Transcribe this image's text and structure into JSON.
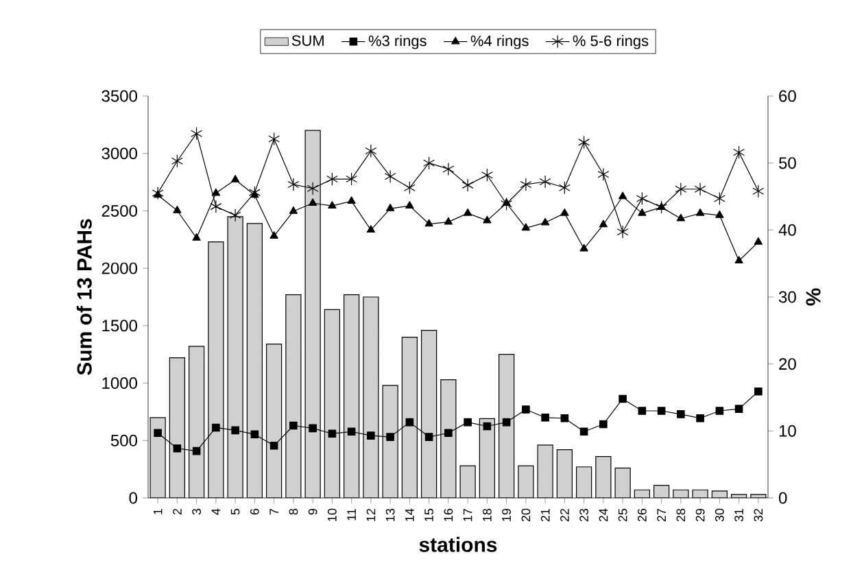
{
  "chart_data": {
    "type": "bar",
    "xlabel": "stations",
    "ylabel": "Sum of 13 PAHs",
    "y2label": "%",
    "categories": [
      "1",
      "2",
      "3",
      "4",
      "5",
      "6",
      "7",
      "8",
      "9",
      "10",
      "11",
      "12",
      "13",
      "14",
      "15",
      "16",
      "17",
      "18",
      "19",
      "20",
      "21",
      "22",
      "23",
      "24",
      "25",
      "26",
      "27",
      "28",
      "29",
      "30",
      "31",
      "32"
    ],
    "series": [
      {
        "name": "SUM",
        "color": "#d0d0d0",
        "values": [
          700,
          1220,
          1320,
          2230,
          2450,
          2390,
          1340,
          1770,
          3200,
          1640,
          1770,
          1750,
          980,
          1400,
          1460,
          1030,
          280,
          690,
          1250,
          280,
          460,
          420,
          270,
          360,
          260,
          70,
          110,
          70,
          70,
          60,
          30,
          30
        ]
      },
      {
        "name": "%3 rings",
        "type": "line",
        "axis": "y2",
        "marker": "square",
        "color": "#000000",
        "values": [
          9.7,
          7.4,
          7.0,
          10.5,
          10.1,
          9.5,
          7.8,
          10.8,
          10.4,
          9.6,
          9.9,
          9.3,
          9.1,
          11.3,
          9.1,
          9.7,
          11.3,
          10.7,
          11.3,
          13.2,
          12.0,
          11.9,
          9.9,
          11.0,
          14.8,
          13.0,
          13.0,
          12.5,
          11.9,
          13.0,
          13.3,
          15.9
        ]
      },
      {
        "name": "%4 rings",
        "type": "line",
        "axis": "y2",
        "marker": "triangle",
        "color": "#000000",
        "values": [
          45.2,
          42.9,
          38.8,
          45.5,
          47.5,
          45.2,
          39.1,
          42.8,
          44.0,
          43.6,
          44.3,
          40.0,
          43.2,
          43.6,
          40.9,
          41.2,
          42.5,
          41.4,
          44.0,
          40.3,
          41.1,
          42.5,
          37.2,
          40.8,
          45.0,
          42.5,
          43.4,
          41.7,
          42.5,
          42.2,
          35.4,
          38.2
        ]
      },
      {
        "name": "% 5-6 rings",
        "type": "line",
        "axis": "y2",
        "marker": "cross",
        "color": "#000000",
        "values": [
          45.5,
          50.3,
          54.4,
          43.5,
          42.2,
          45.6,
          53.6,
          46.8,
          46.2,
          47.6,
          47.6,
          51.8,
          48.0,
          46.3,
          50.0,
          49.1,
          46.7,
          48.2,
          43.9,
          46.8,
          47.2,
          46.3,
          53.1,
          48.3,
          39.7,
          44.7,
          43.4,
          46.1,
          46.1,
          44.7,
          51.6,
          45.8
        ]
      }
    ],
    "ylim": [
      0,
      3500
    ],
    "yticks": [
      0,
      500,
      1000,
      1500,
      2000,
      2500,
      3000,
      3500
    ],
    "y2lim": [
      0,
      60
    ],
    "y2ticks": [
      0,
      10,
      20,
      30,
      40,
      50,
      60
    ],
    "legend": "top"
  }
}
